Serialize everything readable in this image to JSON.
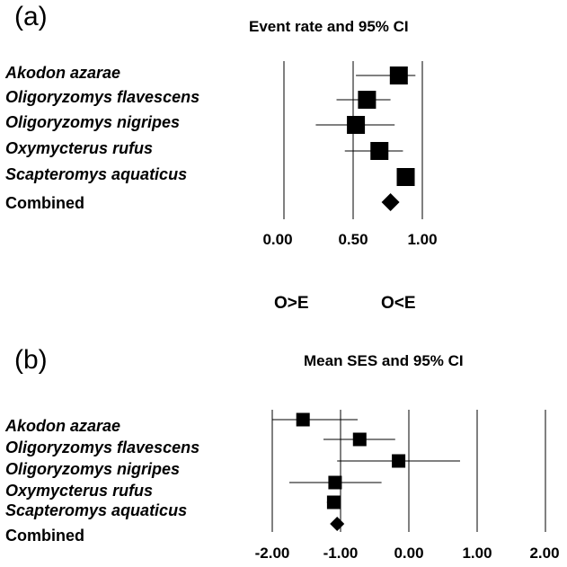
{
  "chart_data": [
    {
      "type": "forest",
      "panel": "(a)",
      "title": "Event rate and 95% CI",
      "categories": [
        "Akodon azarae",
        "Oligoryzomys flavescens",
        "Oligoryzomys nigripes",
        "Oxymycterus rufus",
        "Scapteromys aquaticus",
        "Combined"
      ],
      "estimates": [
        0.83,
        0.6,
        0.52,
        0.69,
        0.88,
        0.77
      ],
      "ci_lower": [
        0.52,
        0.38,
        0.23,
        0.44,
        0.85,
        0.73
      ],
      "ci_upper": [
        0.95,
        0.77,
        0.8,
        0.86,
        0.9,
        0.8
      ],
      "xticks": [
        0.0,
        0.5,
        1.0
      ],
      "xtick_labels": [
        "0.00",
        "0.50",
        "1.00"
      ],
      "xlim": [
        0.0,
        1.0
      ],
      "direction_labels": [
        "O>E",
        "O<E"
      ]
    },
    {
      "type": "forest",
      "panel": "(b)",
      "title": "Mean SES and 95% CI",
      "categories": [
        "Akodon azarae",
        "Oligoryzomys flavescens",
        "Oligoryzomys nigripes",
        "Oxymycterus rufus",
        "Scapteromys aquaticus",
        "Combined"
      ],
      "estimates": [
        -1.55,
        -0.72,
        -0.15,
        -1.08,
        -1.1,
        -1.05
      ],
      "ci_lower": [
        -2.0,
        -1.25,
        -1.05,
        -1.75,
        -1.2,
        -1.1
      ],
      "ci_upper": [
        -0.75,
        -0.2,
        0.75,
        -0.4,
        -1.0,
        -1.0
      ],
      "xticks": [
        -2.0,
        -1.0,
        0.0,
        1.0,
        2.0
      ],
      "xtick_labels": [
        "-2.00",
        "-1.00",
        "0.00",
        "1.00",
        "2.00"
      ],
      "xlim": [
        -2.0,
        2.0
      ]
    }
  ]
}
